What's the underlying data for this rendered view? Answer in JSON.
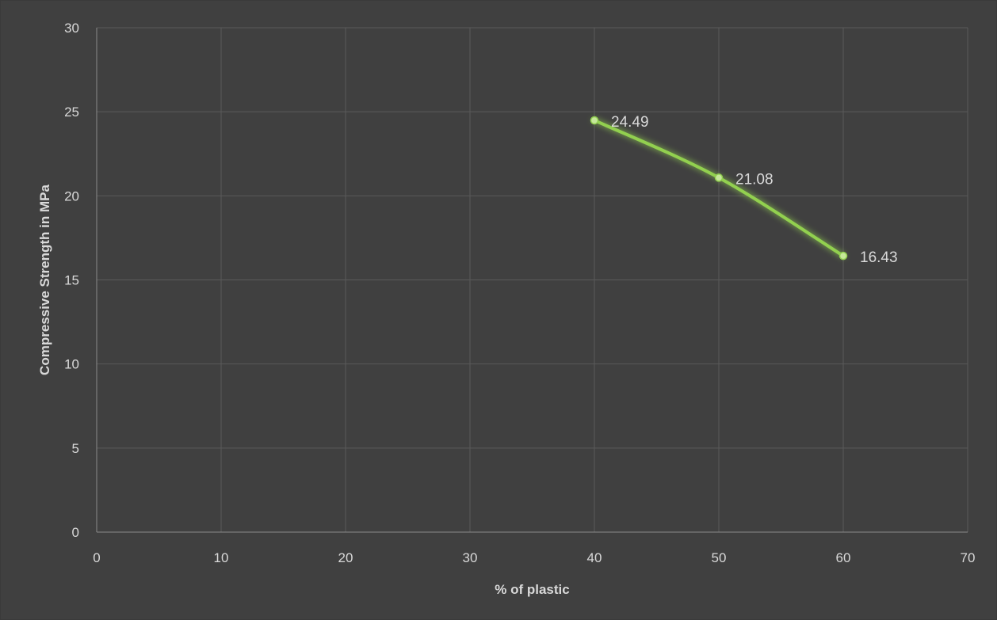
{
  "chart_data": {
    "type": "scatter",
    "title": "",
    "xlabel": "% of plastic",
    "ylabel": "Compressive Strength in MPa",
    "xlim": [
      0,
      70
    ],
    "ylim": [
      0,
      30
    ],
    "x_ticks": [
      0,
      10,
      20,
      30,
      40,
      50,
      60,
      70
    ],
    "y_ticks": [
      0,
      5,
      10,
      15,
      20,
      25,
      30
    ],
    "grid": true,
    "legend": "none",
    "line_style": "smoothed",
    "markers": true,
    "series": [
      {
        "x": [
          40,
          50,
          60
        ],
        "y": [
          24.49,
          21.08,
          16.43
        ],
        "data_labels": [
          "24.49",
          "21.08",
          "16.43"
        ],
        "color": "#92d050"
      }
    ]
  },
  "colors": {
    "background": "#404040",
    "border": "#3a3a3a",
    "gridline": "#5a5a5a",
    "text": "#d9d9d9",
    "series": "#92d050"
  }
}
